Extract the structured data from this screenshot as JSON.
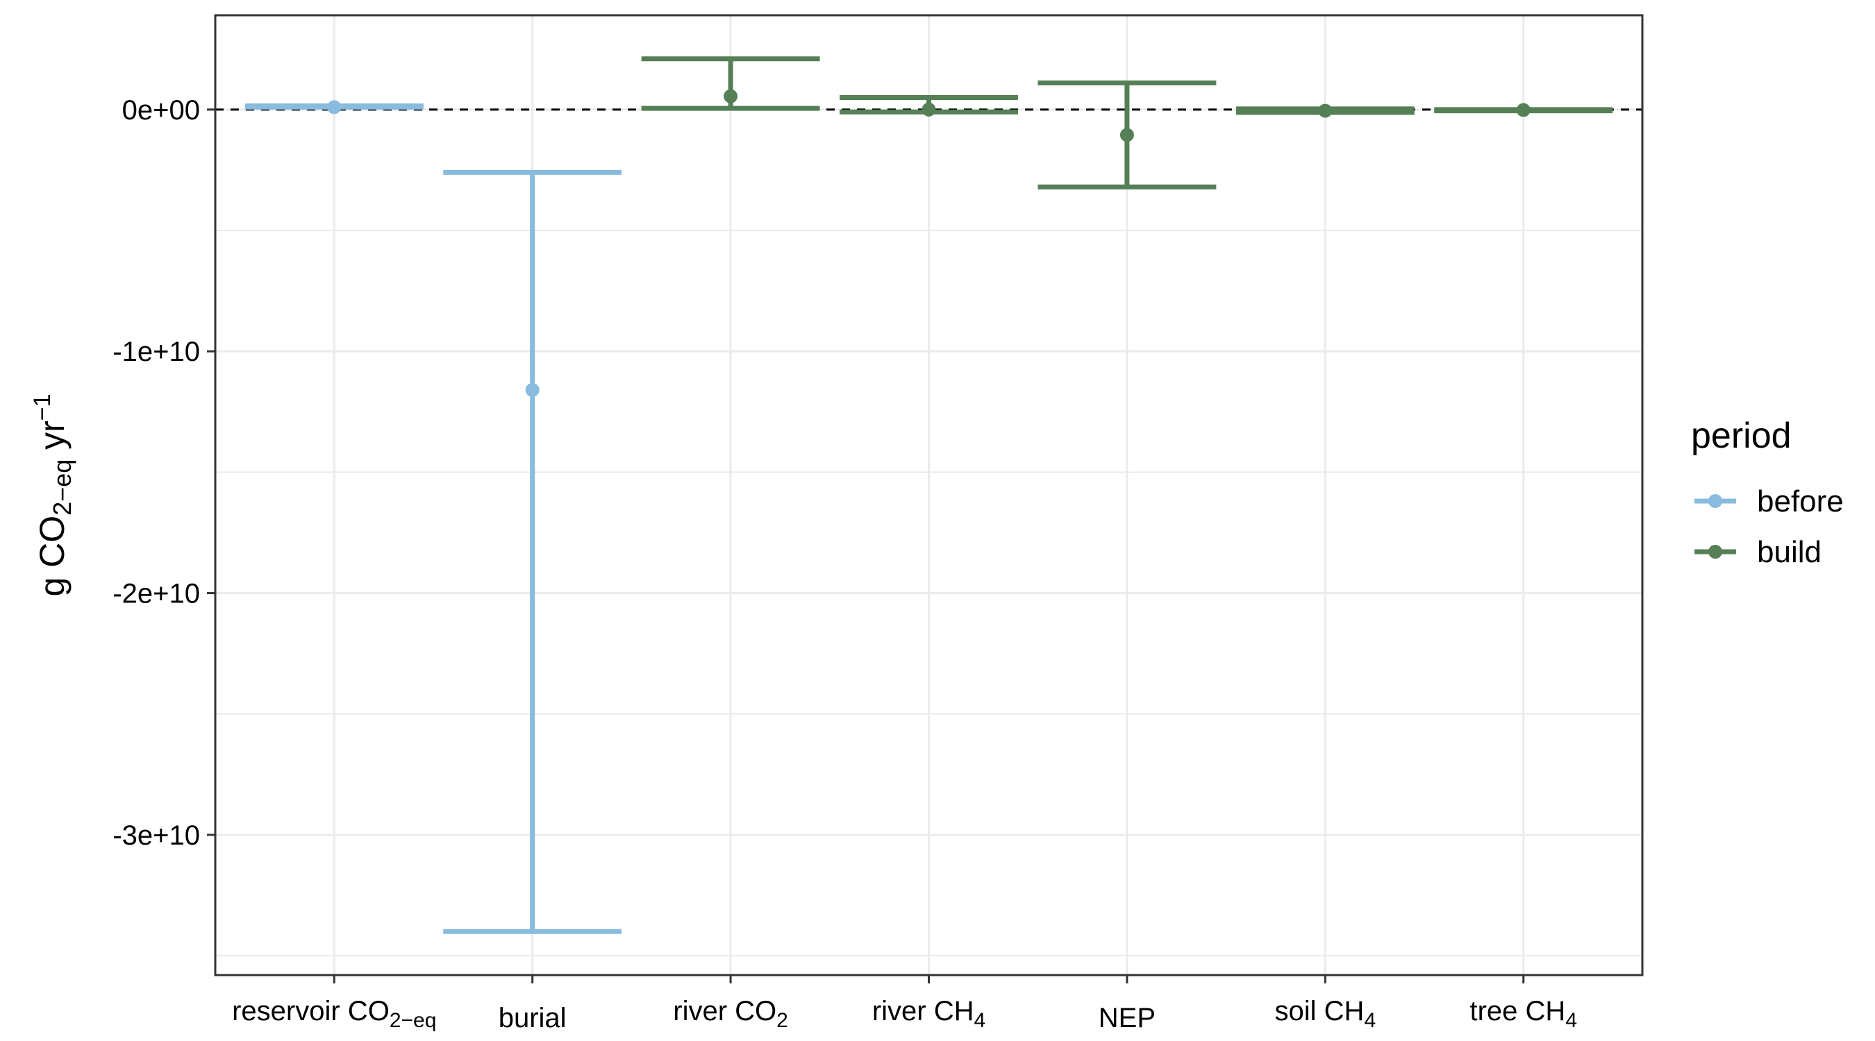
{
  "chart_data": {
    "type": "errorbar",
    "ylabel": {
      "main": "g CO",
      "sub": "2−eq",
      "mid": " yr",
      "sup": "−1"
    },
    "categories": [
      {
        "main": "reservoir CO",
        "sub": "2−eq"
      },
      {
        "main": "burial",
        "sub": ""
      },
      {
        "main": "river CO",
        "sub": "2"
      },
      {
        "main": "river CH",
        "sub": "4"
      },
      {
        "main": "NEP",
        "sub": ""
      },
      {
        "main": "soil CH",
        "sub": "4"
      },
      {
        "main": "tree CH",
        "sub": "4"
      }
    ],
    "y_ticks": [
      {
        "value": 0,
        "label": "0e+00"
      },
      {
        "value": -10000000000,
        "label": "-1e+10"
      },
      {
        "value": -20000000000,
        "label": "-2e+10"
      },
      {
        "value": -30000000000,
        "label": "-3e+10"
      }
    ],
    "ylim": [
      -35800000000,
      3900000000
    ],
    "reference_line": 0,
    "legend": {
      "title": "period",
      "position": "right",
      "entries": [
        {
          "name": "before",
          "color": "#88BBDD"
        },
        {
          "name": "build",
          "color": "#557F55"
        }
      ]
    },
    "points": [
      {
        "category_index": 0,
        "series": "before",
        "y": 100000000,
        "ymin": 100000000,
        "ymax": 150000000
      },
      {
        "category_index": 1,
        "series": "before",
        "y": -11600000000,
        "ymin": -34000000000,
        "ymax": -2600000000
      },
      {
        "category_index": 2,
        "series": "build",
        "y": 550000000,
        "ymin": 50000000,
        "ymax": 2100000000
      },
      {
        "category_index": 3,
        "series": "build",
        "y": 0,
        "ymin": -100000000,
        "ymax": 500000000
      },
      {
        "category_index": 4,
        "series": "build",
        "y": -1050000000,
        "ymin": -3200000000,
        "ymax": 1100000000
      },
      {
        "category_index": 5,
        "series": "build",
        "y": -50000000,
        "ymin": -120000000,
        "ymax": 30000000
      },
      {
        "category_index": 6,
        "series": "build",
        "y": -20000000,
        "ymin": -50000000,
        "ymax": 0
      }
    ],
    "grid": true
  }
}
